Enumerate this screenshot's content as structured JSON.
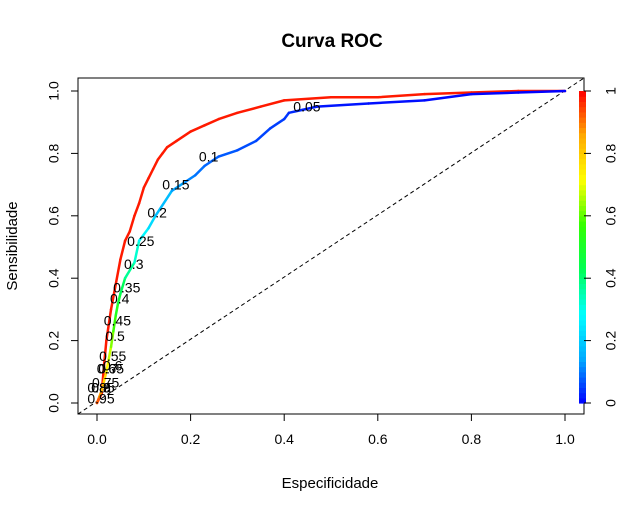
{
  "chart_data": {
    "type": "line",
    "title": "Curva ROC",
    "xlabel": "Especificidade",
    "ylabel": "Sensibilidade",
    "xlim": [
      0,
      1
    ],
    "ylim": [
      0,
      1
    ],
    "grid": false,
    "x_ticks": [
      "0.0",
      "0.2",
      "0.4",
      "0.6",
      "0.8",
      "1.0"
    ],
    "y_ticks": [
      "0.0",
      "0.2",
      "0.4",
      "0.6",
      "0.8",
      "1.0"
    ],
    "reference_line": {
      "from": [
        0,
        0
      ],
      "to": [
        1,
        1
      ],
      "style": "dashed"
    },
    "series": [
      {
        "color": "#ff1a00",
        "x": [
          0.0,
          0.01,
          0.015,
          0.02,
          0.03,
          0.04,
          0.05,
          0.06,
          0.07,
          0.08,
          0.09,
          0.1,
          0.11,
          0.12,
          0.13,
          0.14,
          0.15,
          0.17,
          0.2,
          0.23,
          0.26,
          0.3,
          0.35,
          0.4,
          0.5,
          0.6,
          0.7,
          0.8,
          0.9,
          1.0
        ],
        "y": [
          0.0,
          0.03,
          0.12,
          0.2,
          0.3,
          0.38,
          0.46,
          0.52,
          0.55,
          0.6,
          0.64,
          0.69,
          0.72,
          0.75,
          0.78,
          0.8,
          0.82,
          0.84,
          0.87,
          0.89,
          0.91,
          0.93,
          0.95,
          0.97,
          0.98,
          0.98,
          0.99,
          0.995,
          1.0,
          1.0
        ]
      },
      {
        "color": "colorized by cutoff",
        "x": [
          0.0,
          0.005,
          0.01,
          0.015,
          0.02,
          0.025,
          0.03,
          0.035,
          0.04,
          0.045,
          0.05,
          0.06,
          0.08,
          0.09,
          0.11,
          0.125,
          0.16,
          0.19,
          0.21,
          0.23,
          0.26,
          0.3,
          0.34,
          0.37,
          0.4,
          0.41,
          0.44,
          0.47,
          0.58,
          0.7,
          0.8,
          0.9,
          1.0
        ],
        "y": [
          0.0,
          0.02,
          0.04,
          0.07,
          0.1,
          0.14,
          0.18,
          0.23,
          0.28,
          0.32,
          0.35,
          0.4,
          0.45,
          0.52,
          0.56,
          0.6,
          0.68,
          0.71,
          0.73,
          0.76,
          0.79,
          0.81,
          0.84,
          0.88,
          0.91,
          0.93,
          0.94,
          0.95,
          0.96,
          0.97,
          0.99,
          0.995,
          1.0
        ],
        "cutoff": [
          0.95,
          0.9,
          0.85,
          0.8,
          0.75,
          0.7,
          0.65,
          0.6,
          0.55,
          0.5,
          0.45,
          0.4,
          0.35,
          0.3,
          0.25,
          0.2,
          0.15,
          0.12,
          0.1,
          0.09,
          0.08,
          0.07,
          0.06,
          0.055,
          0.05,
          0.04,
          0.03,
          0.02,
          0.015,
          0.01,
          0.005,
          0.002,
          0.0
        ]
      }
    ],
    "cutoff_labels": [
      {
        "label": "0.95",
        "x": 0.0,
        "y": 0.015
      },
      {
        "label": "0.9",
        "x": 0.0,
        "y": 0.05
      },
      {
        "label": "0.85",
        "x": 0.0,
        "y": 0.05
      },
      {
        "label": "0.8",
        "x": 0.0,
        "y": 0.05
      },
      {
        "label": "0.75",
        "x": 0.01,
        "y": 0.065
      },
      {
        "label": "0.7",
        "x": 0.015,
        "y": 0.11
      },
      {
        "label": "0.65",
        "x": 0.02,
        "y": 0.11
      },
      {
        "label": "0.6",
        "x": 0.025,
        "y": 0.12
      },
      {
        "label": "0.55",
        "x": 0.025,
        "y": 0.15
      },
      {
        "label": "0.5",
        "x": 0.03,
        "y": 0.215
      },
      {
        "label": "0.45",
        "x": 0.035,
        "y": 0.265
      },
      {
        "label": "0.4",
        "x": 0.04,
        "y": 0.335
      },
      {
        "label": "0.35",
        "x": 0.055,
        "y": 0.37
      },
      {
        "label": "0.3",
        "x": 0.07,
        "y": 0.445
      },
      {
        "label": "0.25",
        "x": 0.085,
        "y": 0.52
      },
      {
        "label": "0.2",
        "x": 0.12,
        "y": 0.61
      },
      {
        "label": "0.15",
        "x": 0.16,
        "y": 0.7
      },
      {
        "label": "0.1",
        "x": 0.23,
        "y": 0.79
      },
      {
        "label": "0.05",
        "x": 0.44,
        "y": 0.95
      }
    ],
    "colorbar": {
      "ticks": [
        "0",
        "0.2",
        "0.4",
        "0.6",
        "0.8",
        "1"
      ],
      "colors": [
        "#0000ff",
        "#00aaff",
        "#00ffff",
        "#00ff55",
        "#33ff00",
        "#ffff00",
        "#ffaa00",
        "#ff0000"
      ]
    }
  }
}
